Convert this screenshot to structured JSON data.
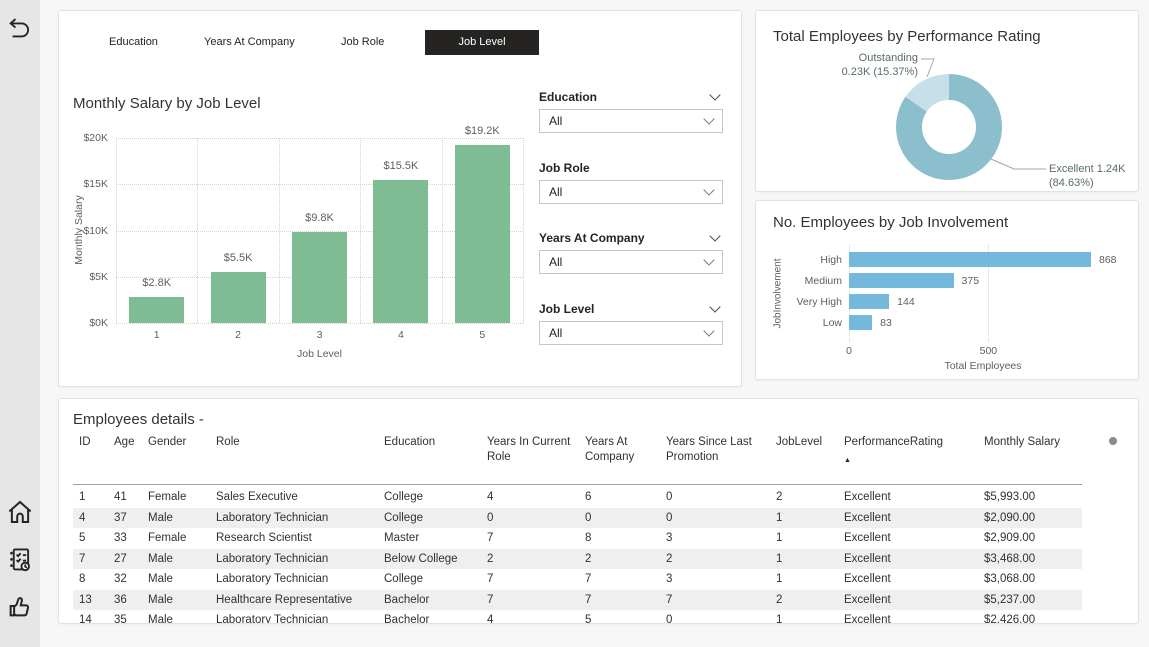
{
  "tabs": {
    "items": [
      {
        "label": "Education",
        "selected": false
      },
      {
        "label": "Years At Company",
        "selected": false
      },
      {
        "label": "Job Role",
        "selected": false
      },
      {
        "label": "Job Level",
        "selected": true
      }
    ]
  },
  "filters": [
    {
      "label": "Education",
      "value": "All",
      "header_chevron": true
    },
    {
      "label": "Job Role",
      "value": "All",
      "header_chevron": false
    },
    {
      "label": "Years At Company",
      "value": "All",
      "header_chevron": true
    },
    {
      "label": "Job Level",
      "value": "All",
      "header_chevron": true
    }
  ],
  "chart_data": [
    {
      "type": "bar",
      "title": "Monthly Salary by Job Level",
      "xlabel": "Job Level",
      "ylabel": "Monthly Salary",
      "categories": [
        "1",
        "2",
        "3",
        "4",
        "5"
      ],
      "values": [
        2800,
        5500,
        9800,
        15500,
        19200
      ],
      "value_labels": [
        "$2.8K",
        "$5.5K",
        "$9.8K",
        "$15.5K",
        "$19.2K"
      ],
      "ylim": [
        0,
        20000
      ],
      "ytick_labels": [
        "$0K",
        "$5K",
        "$10K",
        "$15K",
        "$20K"
      ],
      "bar_color": "#7EBD93",
      "grid": true
    },
    {
      "type": "donut",
      "title": "Total Employees by Performance Rating",
      "slices": [
        {
          "label": "Excellent",
          "value": "1.24K",
          "pct": 84.63,
          "callout": "Excellent 1.24K (84.63%)",
          "color": "#8BBFCE"
        },
        {
          "label": "Outstanding",
          "value": "0.23K",
          "pct": 15.37,
          "callout_line1": "Outstanding",
          "callout_line2": "0.23K (15.37%)",
          "color": "#C6DFE9"
        }
      ]
    },
    {
      "type": "hbar",
      "title": "No. Employees by Job Involvement",
      "xlabel": "Total Employees",
      "ylabel": "JobInvolvement",
      "categories": [
        "High",
        "Medium",
        "Very High",
        "Low"
      ],
      "values": [
        868,
        375,
        144,
        83
      ],
      "xticks": [
        0,
        500
      ],
      "xtick_labels": [
        "0",
        "500"
      ],
      "bar_color": "#74B8DB",
      "grid": true
    }
  ],
  "table": {
    "title": "Employees details -",
    "columns": [
      "ID",
      "Age",
      "Gender",
      "Role",
      "Education",
      "Years In Current Role",
      "Years At Company",
      "Years Since Last Promotion",
      "JobLevel",
      "PerformanceRating",
      "Monthly Salary"
    ],
    "sort": {
      "column": "PerformanceRating",
      "direction": "ascending"
    },
    "rows": [
      [
        "1",
        "41",
        "Female",
        "Sales Executive",
        "College",
        "4",
        "6",
        "0",
        "2",
        "Excellent",
        "$5,993.00"
      ],
      [
        "4",
        "37",
        "Male",
        "Laboratory Technician",
        "College",
        "0",
        "0",
        "0",
        "1",
        "Excellent",
        "$2,090.00"
      ],
      [
        "5",
        "33",
        "Female",
        "Research Scientist",
        "Master",
        "7",
        "8",
        "3",
        "1",
        "Excellent",
        "$2,909.00"
      ],
      [
        "7",
        "27",
        "Male",
        "Laboratory Technician",
        "Below College",
        "2",
        "2",
        "2",
        "1",
        "Excellent",
        "$3,468.00"
      ],
      [
        "8",
        "32",
        "Male",
        "Laboratory Technician",
        "College",
        "7",
        "7",
        "3",
        "1",
        "Excellent",
        "$3,068.00"
      ],
      [
        "13",
        "36",
        "Male",
        "Healthcare Representative",
        "Bachelor",
        "7",
        "7",
        "7",
        "2",
        "Excellent",
        "$5,237.00"
      ],
      [
        "14",
        "35",
        "Male",
        "Laboratory Technician",
        "Bachelor",
        "4",
        "5",
        "0",
        "1",
        "Excellent",
        "$2,426.00"
      ]
    ]
  },
  "colors": {
    "tab_selected_bg": "#252423",
    "sidebar_bg": "#E6E6E6",
    "bar_green": "#7EBD93",
    "donut_teal": "#8BBFCE",
    "donut_light": "#C6DFE9",
    "hbar_blue": "#74B8DB",
    "stripe": "#EFEFEF"
  },
  "icons": {
    "back": "back-icon",
    "home": "home-icon",
    "survey": "survey-checklist-icon",
    "thumbs_up": "thumbs-up-icon"
  }
}
